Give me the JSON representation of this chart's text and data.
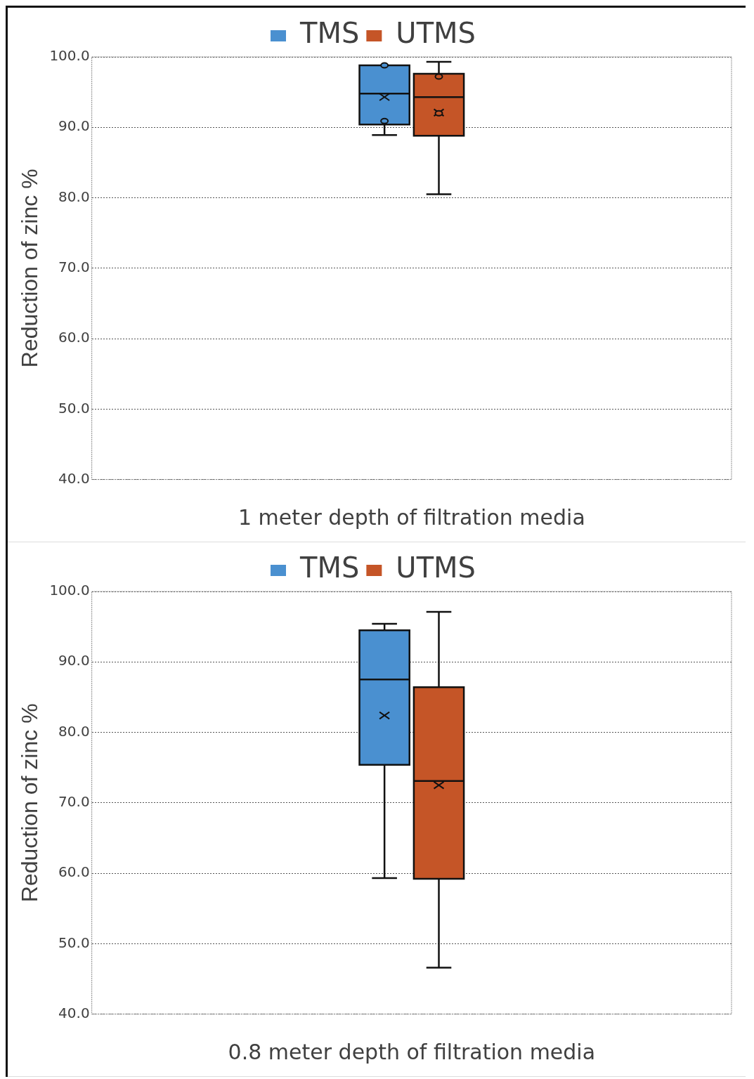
{
  "chart_data": [
    {
      "type": "box",
      "categories": [
        null
      ],
      "xlabel": "1 meter depth of filtration media",
      "ylabel": "Reduction of zinc %",
      "legend": "top",
      "grid": "y",
      "ylim": [
        40,
        100
      ],
      "yticks": [
        {
          "value": 40,
          "label": "40.0"
        },
        {
          "value": 50,
          "label": "50.0"
        },
        {
          "value": 60,
          "label": "60.0"
        },
        {
          "value": 70,
          "label": "70.0"
        },
        {
          "value": 80,
          "label": "80.0"
        },
        {
          "value": 90,
          "label": "90.0"
        },
        {
          "value": 100,
          "label": "100.0"
        }
      ],
      "series": [
        {
          "name": "TMS",
          "color": "#4a90d0",
          "boxes": [
            {
              "low": 88.9,
              "q1": 90.4,
              "median": 94.8,
              "q3": 98.8,
              "high": 98.8,
              "mean": 94.3,
              "outliers": [
                98.8,
                90.9
              ]
            }
          ]
        },
        {
          "name": "UTMS",
          "color": "#c55527",
          "boxes": [
            {
              "low": 80.5,
              "q1": 88.8,
              "median": 94.3,
              "q3": 97.6,
              "high": 99.3,
              "mean": 92.1,
              "outliers": [
                97.2,
                92.0
              ]
            }
          ]
        }
      ]
    },
    {
      "type": "box",
      "categories": [
        null
      ],
      "xlabel": "0.8 meter depth of filtration media",
      "ylabel": "Reduction of zinc %",
      "legend": "top",
      "grid": "y",
      "ylim": [
        40,
        100
      ],
      "yticks": [
        {
          "value": 40,
          "label": "40.0"
        },
        {
          "value": 50,
          "label": "50.0"
        },
        {
          "value": 60,
          "label": "60.0"
        },
        {
          "value": 70,
          "label": "70.0"
        },
        {
          "value": 80,
          "label": "80.0"
        },
        {
          "value": 90,
          "label": "90.0"
        },
        {
          "value": 100,
          "label": "100.0"
        }
      ],
      "series": [
        {
          "name": "TMS",
          "color": "#4a90d0",
          "boxes": [
            {
              "low": 59.3,
              "q1": 75.4,
              "median": 87.5,
              "q3": 94.5,
              "high": 95.4,
              "mean": 82.4
            }
          ]
        },
        {
          "name": "UTMS",
          "color": "#c55527",
          "boxes": [
            {
              "low": 46.6,
              "q1": 59.2,
              "median": 73.1,
              "q3": 86.4,
              "high": 97.1,
              "mean": 72.5
            }
          ]
        }
      ]
    }
  ]
}
